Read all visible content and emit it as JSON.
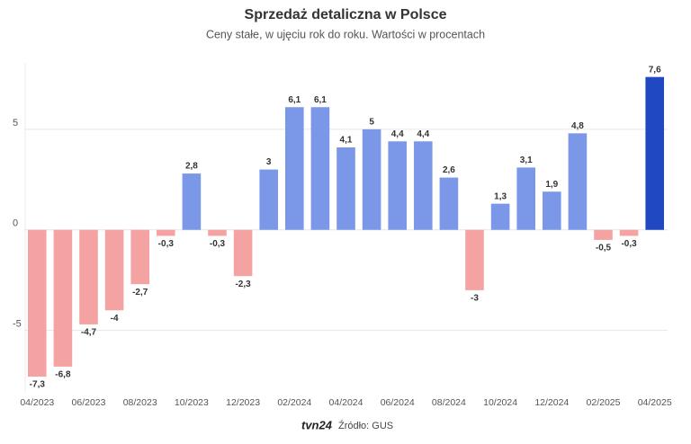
{
  "chart_data": {
    "type": "bar",
    "title": "Sprzedaż detaliczna w Polsce",
    "subtitle": "Ceny stałe, w ujęciu rok do roku. Wartości w procentach",
    "categories": [
      "04/2023",
      null,
      "06/2023",
      null,
      "08/2023",
      null,
      "10/2023",
      null,
      "12/2023",
      null,
      "02/2024",
      null,
      "04/2024",
      null,
      "06/2024",
      null,
      "08/2024",
      null,
      "10/2024",
      null,
      "12/2024",
      null,
      "02/2025",
      null,
      "04/2025"
    ],
    "values": [
      -7.3,
      -6.8,
      -4.7,
      -4,
      -2.7,
      -0.3,
      2.8,
      -0.3,
      -2.3,
      3,
      6.1,
      6.1,
      4.1,
      5,
      4.4,
      4.4,
      2.6,
      -3,
      1.3,
      3.1,
      1.9,
      4.8,
      -0.5,
      -0.3,
      7.6
    ],
    "value_labels": [
      "-7,3",
      "-6,8",
      "-4,7",
      "-4",
      "-2,7",
      "-0,3",
      "2,8",
      "-0,3",
      "-2,3",
      "3",
      "6,1",
      "6,1",
      "4,1",
      "5",
      "4,4",
      "4,4",
      "2,6",
      "-3",
      "1,3",
      "3,1",
      "1,9",
      "4,8",
      "-0,5",
      "-0,3",
      "7,6"
    ],
    "colors": [
      "#f5a3a2",
      "#f5a3a2",
      "#f5a3a2",
      "#f5a3a2",
      "#f5a3a2",
      "#f5a3a2",
      "#7b98e8",
      "#f5a3a2",
      "#f5a3a2",
      "#7b98e8",
      "#7b98e8",
      "#7b98e8",
      "#7b98e8",
      "#7b98e8",
      "#7b98e8",
      "#7b98e8",
      "#7b98e8",
      "#f5a3a2",
      "#7b98e8",
      "#7b98e8",
      "#7b98e8",
      "#7b98e8",
      "#f5a3a2",
      "#f5a3a2",
      "#1f48c2"
    ],
    "ylim": [
      -8.1,
      8.3
    ],
    "yticks": [
      -5,
      0,
      5
    ],
    "grid": true,
    "logo": "tvn24",
    "source": "Źródło: GUS"
  }
}
